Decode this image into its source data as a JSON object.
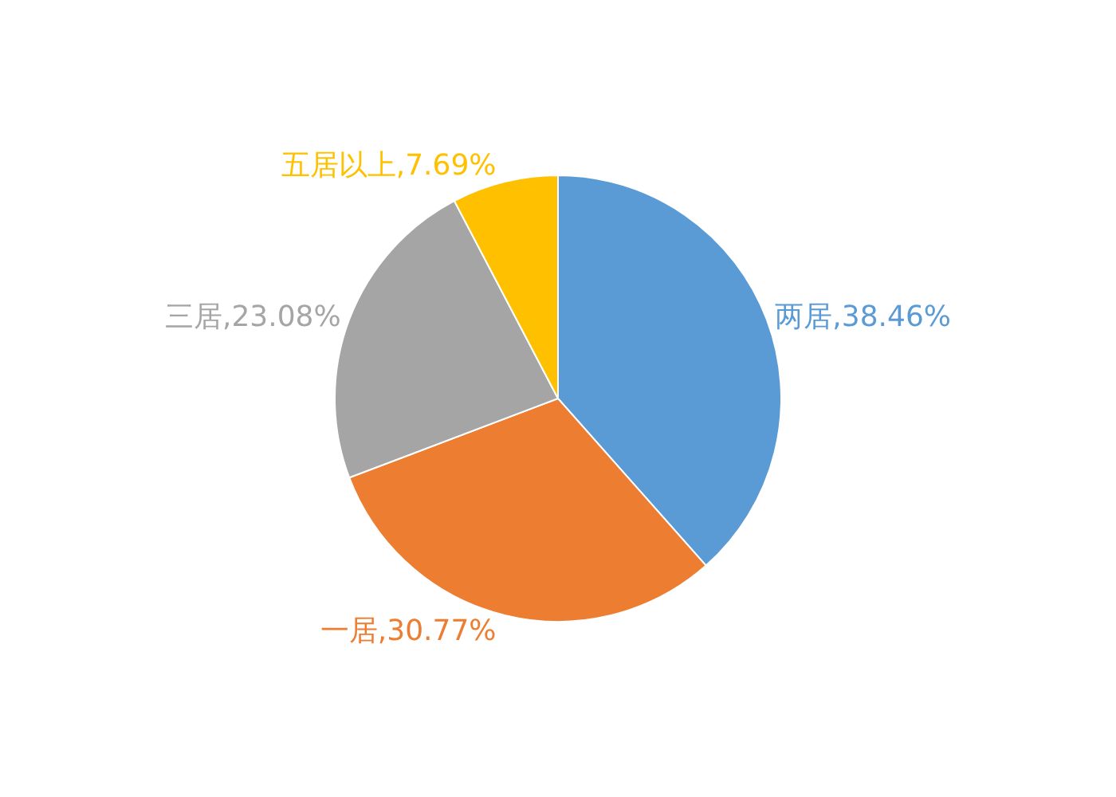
{
  "chart_data": {
    "type": "pie",
    "categories": [
      "两居",
      "一居",
      "三居",
      "五居以上"
    ],
    "values": [
      38.46,
      30.77,
      23.08,
      7.69
    ],
    "colors": [
      "#5b9bd5",
      "#ed7d31",
      "#a5a5a5",
      "#ffc000"
    ],
    "value_labels": [
      "38.46%",
      "30.77%",
      "23.08%",
      "7.69%"
    ],
    "legend": false
  }
}
